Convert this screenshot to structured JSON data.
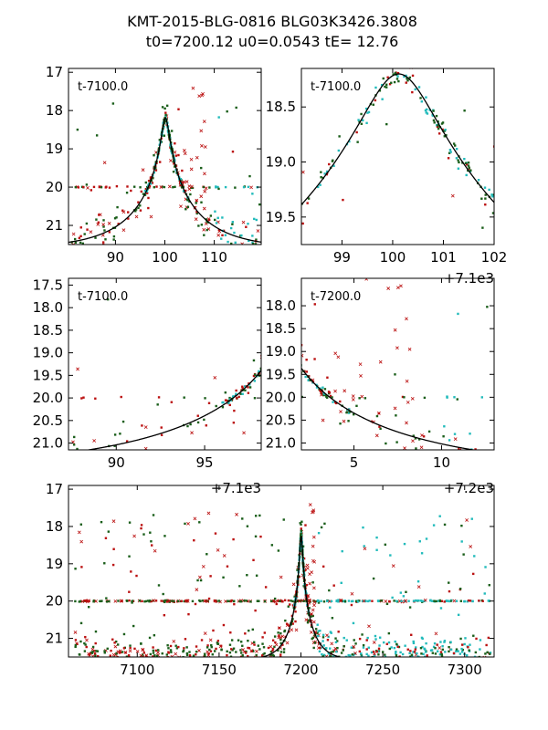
{
  "title": {
    "line1": "KMT-2015-BLG-0816 BLG03K3426.3808",
    "line2": "t0=7200.12 u0=0.0543 tE=  12.76"
  },
  "colors": {
    "green": "#1a5e1a",
    "red": "#bb1111",
    "cyan": "#22bbbb",
    "curve": "#000000"
  },
  "chart_data": [
    {
      "id": "panel-1",
      "type": "scatter",
      "label": "t-7100.0",
      "offset_label": "",
      "xlim": [
        80.5,
        119.5
      ],
      "ylim": [
        21.5,
        16.9
      ],
      "xticks": [
        90,
        100,
        110
      ],
      "yticks": [
        17,
        18,
        19,
        20,
        21
      ],
      "xtick_labels": [
        "90",
        "100",
        "110"
      ],
      "ytick_labels": [
        "17",
        "18",
        "19",
        "20",
        "21"
      ],
      "model": {
        "t0": 100.12,
        "u0": 0.0543,
        "tE": 12.76,
        "mag_peak": 18.2,
        "mag_base": 21.6
      }
    },
    {
      "id": "panel-2",
      "type": "scatter",
      "label": "t-7100.0",
      "offset_label": "+7.1e3",
      "xlim": [
        98.2,
        102.0
      ],
      "ylim": [
        19.75,
        18.15
      ],
      "xticks": [
        99,
        100,
        101,
        102
      ],
      "yticks": [
        18.5,
        19.0,
        19.5
      ],
      "xtick_labels": [
        "99",
        "100",
        "101",
        "102"
      ],
      "ytick_labels": [
        "18.5",
        "19.0",
        "19.5"
      ],
      "model": {
        "t0": 100.12,
        "u0": 0.0543,
        "tE": 12.76,
        "mag_peak": 18.2,
        "mag_base": 21.6
      }
    },
    {
      "id": "panel-3",
      "type": "scatter",
      "label": "t-7100.0",
      "offset_label": "+7.1e3",
      "xlim": [
        87.3,
        98.2
      ],
      "ylim": [
        21.15,
        17.35
      ],
      "xticks": [
        90,
        95
      ],
      "yticks": [
        17.5,
        18.0,
        18.5,
        19.0,
        19.5,
        20.0,
        20.5,
        21.0
      ],
      "xtick_labels": [
        "90",
        "95"
      ],
      "ytick_labels": [
        "17.5",
        "18.0",
        "18.5",
        "19.0",
        "19.5",
        "20.0",
        "20.5",
        "21.0"
      ],
      "model": {
        "t0": 100.12,
        "u0": 0.0543,
        "tE": 12.76,
        "mag_peak": 18.2,
        "mag_base": 21.6
      }
    },
    {
      "id": "panel-4",
      "type": "scatter",
      "label": "t-7200.0",
      "offset_label": "+7.2e3",
      "xlim": [
        2.0,
        13.0
      ],
      "ylim": [
        21.15,
        17.4
      ],
      "xticks": [
        5,
        10
      ],
      "yticks": [
        18.0,
        18.5,
        19.0,
        19.5,
        20.0,
        20.5,
        21.0
      ],
      "xtick_labels": [
        "5",
        "10"
      ],
      "ytick_labels": [
        "18.0",
        "18.5",
        "19.0",
        "19.5",
        "20.0",
        "20.5",
        "21.0"
      ],
      "model": {
        "t0": 0.12,
        "u0": 0.0543,
        "tE": 12.76,
        "mag_peak": 18.2,
        "mag_base": 21.6
      }
    },
    {
      "id": "panel-5",
      "type": "scatter",
      "label": "",
      "offset_label": "",
      "xlim": [
        7058,
        7318
      ],
      "ylim": [
        21.5,
        16.9
      ],
      "xticks": [
        7100,
        7150,
        7200,
        7250,
        7300
      ],
      "yticks": [
        17,
        18,
        19,
        20,
        21
      ],
      "xtick_labels": [
        "7100",
        "7150",
        "7200",
        "7250",
        "7300"
      ],
      "ytick_labels": [
        "17",
        "18",
        "19",
        "20",
        "21"
      ],
      "model": {
        "t0": 7200.12,
        "u0": 0.0543,
        "tE": 12.76,
        "mag_peak": 18.2,
        "mag_base": 21.6
      }
    }
  ]
}
